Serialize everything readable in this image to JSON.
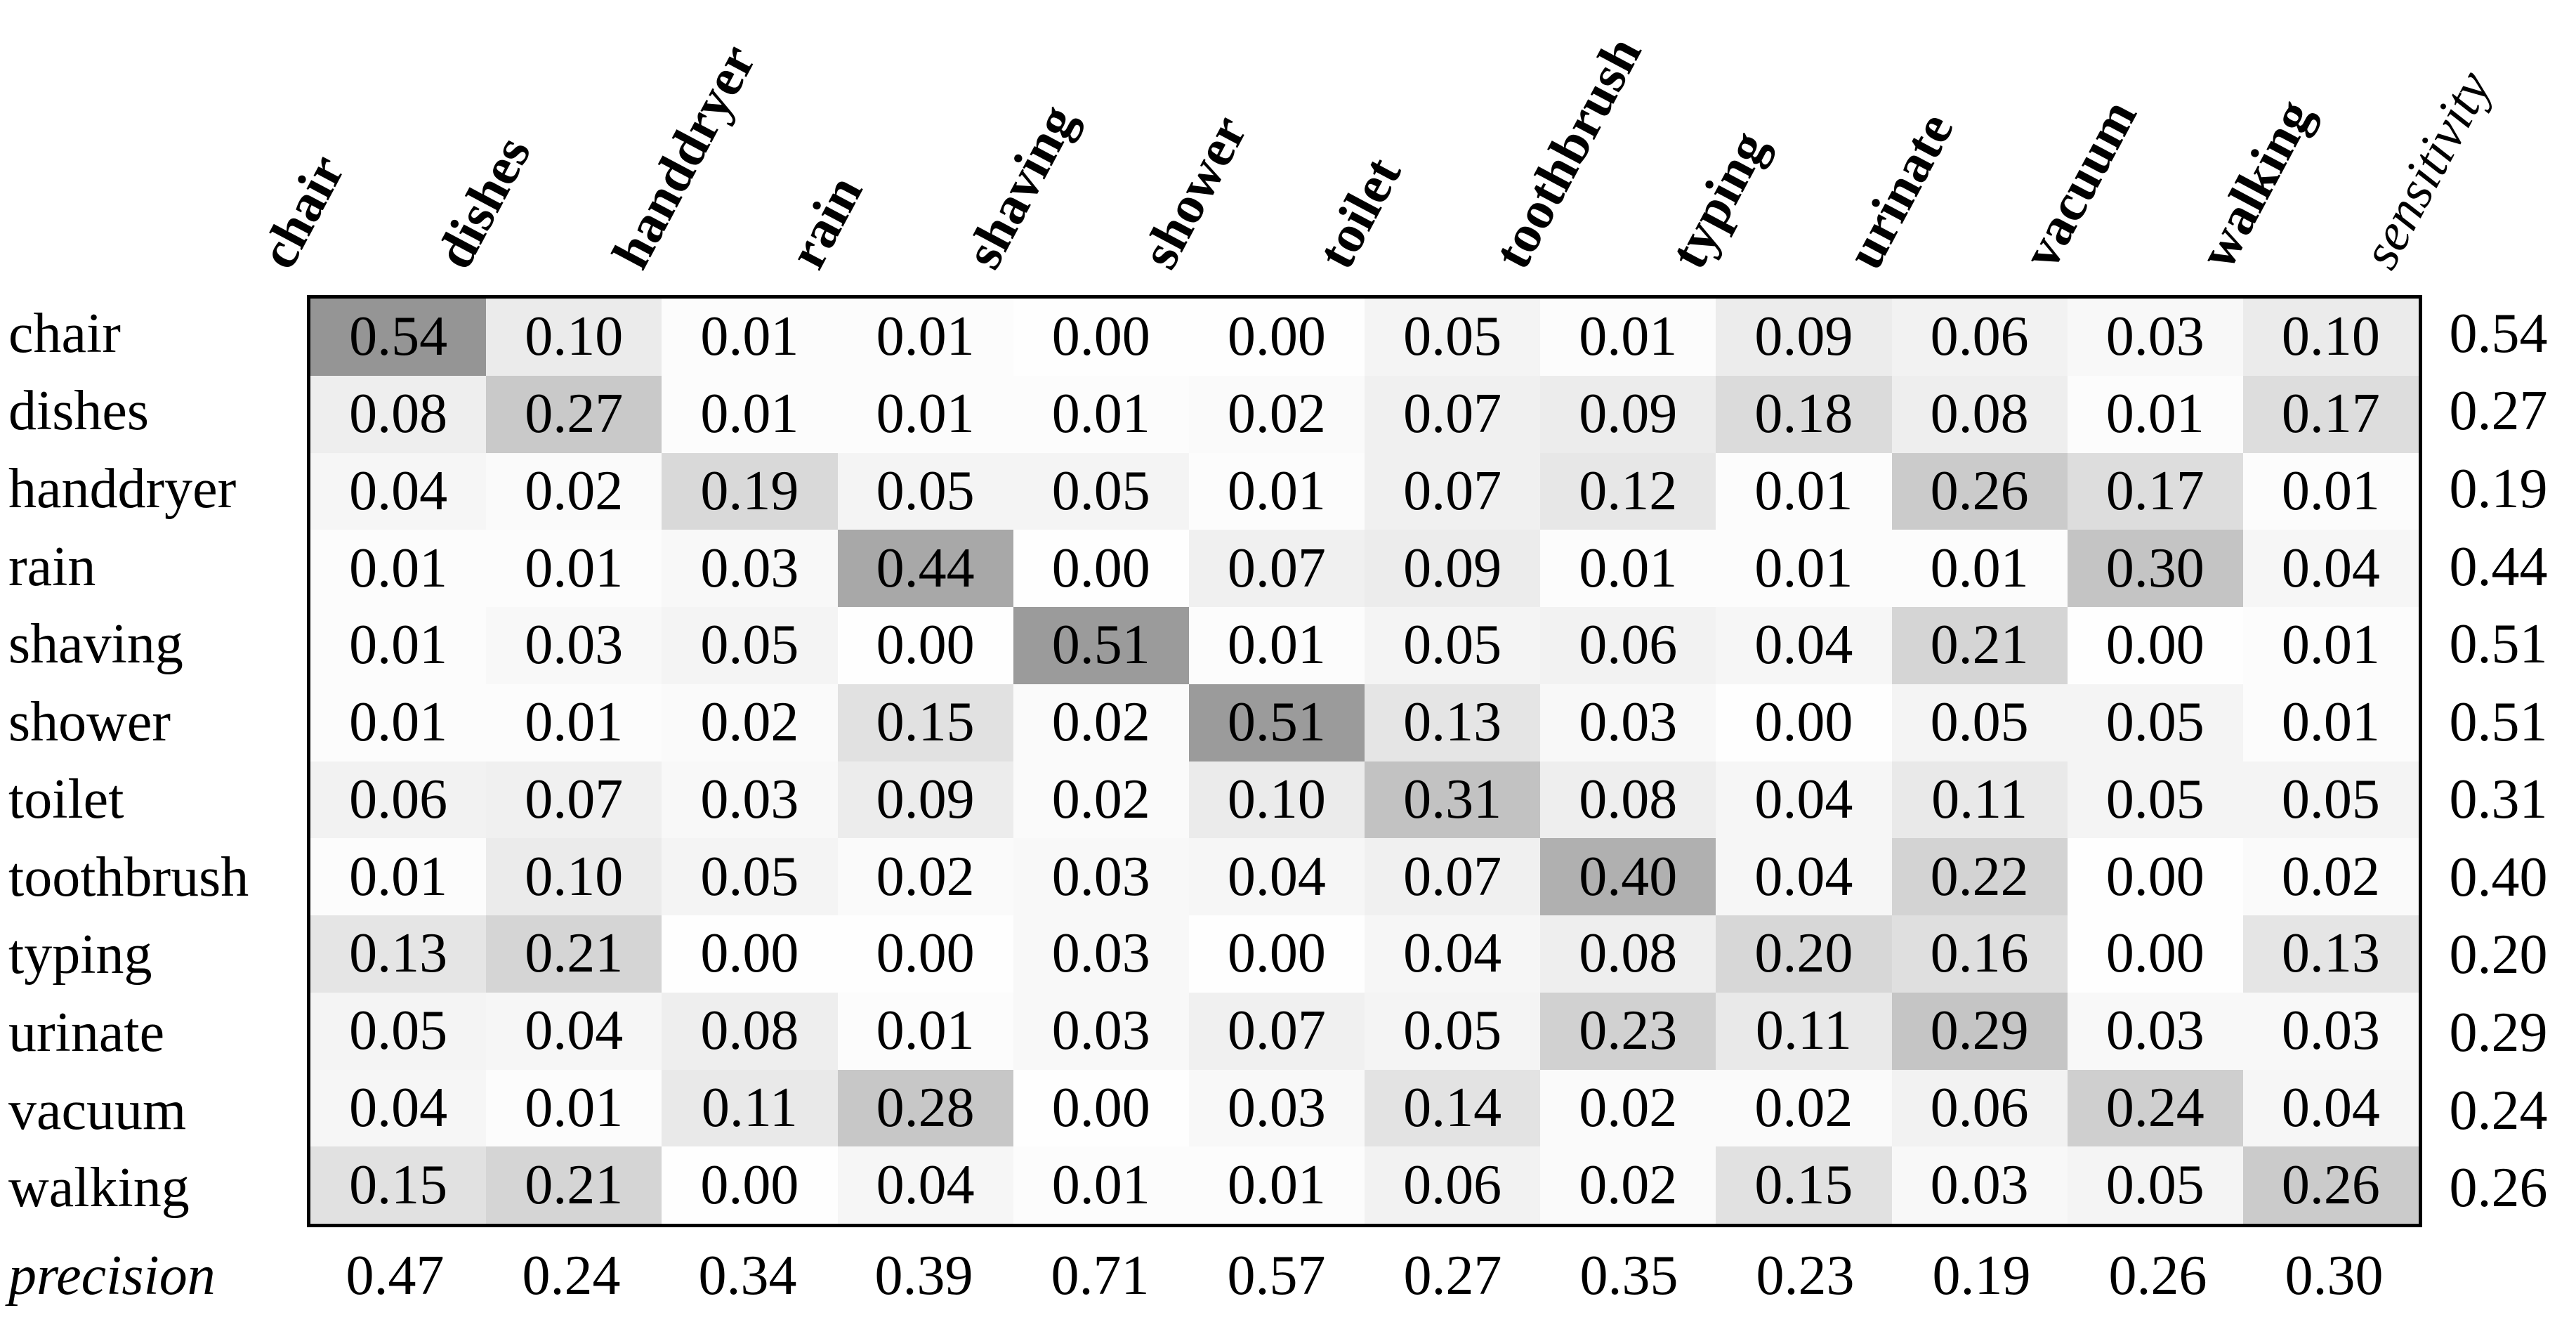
{
  "chart_data": {
    "type": "heatmap",
    "title": "",
    "xlabel": "",
    "ylabel": "",
    "rows": [
      "chair",
      "dishes",
      "handdryer",
      "rain",
      "shaving",
      "shower",
      "toilet",
      "toothbrush",
      "typing",
      "urinate",
      "vacuum",
      "walking"
    ],
    "cols": [
      "chair",
      "dishes",
      "handdryer",
      "rain",
      "shaving",
      "shower",
      "toilet",
      "toothbrush",
      "typing",
      "urinate",
      "vacuum",
      "walking"
    ],
    "sensitivity_label": "sensitivity",
    "precision_label": "precision",
    "matrix": [
      [
        "0.54",
        "0.10",
        "0.01",
        "0.01",
        "0.00",
        "0.00",
        "0.05",
        "0.01",
        "0.09",
        "0.06",
        "0.03",
        "0.10"
      ],
      [
        "0.08",
        "0.27",
        "0.01",
        "0.01",
        "0.01",
        "0.02",
        "0.07",
        "0.09",
        "0.18",
        "0.08",
        "0.01",
        "0.17"
      ],
      [
        "0.04",
        "0.02",
        "0.19",
        "0.05",
        "0.05",
        "0.01",
        "0.07",
        "0.12",
        "0.01",
        "0.26",
        "0.17",
        "0.01"
      ],
      [
        "0.01",
        "0.01",
        "0.03",
        "0.44",
        "0.00",
        "0.07",
        "0.09",
        "0.01",
        "0.01",
        "0.01",
        "0.30",
        "0.04"
      ],
      [
        "0.01",
        "0.03",
        "0.05",
        "0.00",
        "0.51",
        "0.01",
        "0.05",
        "0.06",
        "0.04",
        "0.21",
        "0.00",
        "0.01"
      ],
      [
        "0.01",
        "0.01",
        "0.02",
        "0.15",
        "0.02",
        "0.51",
        "0.13",
        "0.03",
        "0.00",
        "0.05",
        "0.05",
        "0.01"
      ],
      [
        "0.06",
        "0.07",
        "0.03",
        "0.09",
        "0.02",
        "0.10",
        "0.31",
        "0.08",
        "0.04",
        "0.11",
        "0.05",
        "0.05"
      ],
      [
        "0.01",
        "0.10",
        "0.05",
        "0.02",
        "0.03",
        "0.04",
        "0.07",
        "0.40",
        "0.04",
        "0.22",
        "0.00",
        "0.02"
      ],
      [
        "0.13",
        "0.21",
        "0.00",
        "0.00",
        "0.03",
        "0.00",
        "0.04",
        "0.08",
        "0.20",
        "0.16",
        "0.00",
        "0.13"
      ],
      [
        "0.05",
        "0.04",
        "0.08",
        "0.01",
        "0.03",
        "0.07",
        "0.05",
        "0.23",
        "0.11",
        "0.29",
        "0.03",
        "0.03"
      ],
      [
        "0.04",
        "0.01",
        "0.11",
        "0.28",
        "0.00",
        "0.03",
        "0.14",
        "0.02",
        "0.02",
        "0.06",
        "0.24",
        "0.04"
      ],
      [
        "0.15",
        "0.21",
        "0.00",
        "0.04",
        "0.01",
        "0.01",
        "0.06",
        "0.02",
        "0.15",
        "0.03",
        "0.05",
        "0.26"
      ]
    ],
    "sensitivity": [
      "0.54",
      "0.27",
      "0.19",
      "0.44",
      "0.51",
      "0.51",
      "0.31",
      "0.40",
      "0.20",
      "0.29",
      "0.24",
      "0.26"
    ],
    "precision": [
      "0.47",
      "0.24",
      "0.34",
      "0.39",
      "0.71",
      "0.57",
      "0.27",
      "0.35",
      "0.23",
      "0.19",
      "0.26",
      "0.30"
    ],
    "value_range": [
      0.0,
      1.0
    ],
    "grid": false,
    "legend": "none",
    "colors": {
      "background": "#ffffff",
      "text": "#000000",
      "border": "#000000",
      "cell_zero": "#fefefe",
      "cell_max_sample": "#959595",
      "shade_slope": 195
    }
  }
}
